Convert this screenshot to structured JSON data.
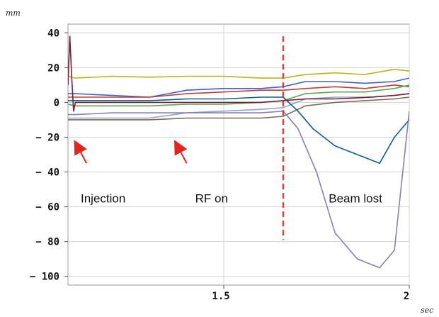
{
  "chart_data": {
    "type": "line",
    "title": "",
    "x_unit_label": "sec",
    "y_unit_label": "mm",
    "xlim": [
      1.08,
      2.0
    ],
    "ylim": [
      -105,
      45
    ],
    "x_ticks": [
      1.5,
      2
    ],
    "x_tick_labels": [
      "1.5",
      "2"
    ],
    "y_ticks": [
      40,
      20,
      0,
      -20,
      -40,
      -60,
      -80,
      -100
    ],
    "y_tick_labels": [
      "40",
      "20",
      "0",
      "-20",
      "-40",
      "-60",
      "-80",
      "-100"
    ],
    "grid": true,
    "legend": "none",
    "event_line": {
      "x": 1.66,
      "y_range": [
        -79,
        38
      ],
      "color": "#e8231d",
      "style": "dashed"
    },
    "annotations": [
      {
        "text": "Injection",
        "x": 1.08,
        "y": -55,
        "arrow_from": [
          1.13,
          -35
        ],
        "arrow_to": [
          1.1,
          -23
        ]
      },
      {
        "text": "RF on",
        "x": 1.4,
        "y": -55,
        "arrow_from": [
          1.4,
          -35
        ],
        "arrow_to": [
          1.37,
          -23
        ]
      },
      {
        "text": "Beam lost",
        "x": 1.76,
        "y": -55
      }
    ],
    "series": [
      {
        "color": "#b7b61a",
        "x": [
          1.08,
          1.1,
          1.2,
          1.3,
          1.4,
          1.5,
          1.6,
          1.66,
          1.72,
          1.8,
          1.88,
          1.96,
          2.0
        ],
        "values": [
          15,
          14,
          15,
          14.5,
          15,
          15,
          14,
          14,
          16,
          17,
          16,
          19,
          18
        ]
      },
      {
        "color": "#3f5fc6",
        "x": [
          1.08,
          1.1,
          1.2,
          1.3,
          1.4,
          1.5,
          1.6,
          1.66,
          1.72,
          1.8,
          1.88,
          1.96,
          2.0
        ],
        "values": [
          5,
          5,
          4,
          3,
          7,
          8,
          8,
          9,
          12,
          12,
          11,
          12,
          14
        ]
      },
      {
        "color": "#c23a3a",
        "x": [
          1.08,
          1.1,
          1.2,
          1.3,
          1.4,
          1.5,
          1.6,
          1.66,
          1.72,
          1.8,
          1.88,
          1.96,
          2.0
        ],
        "values": [
          3,
          3,
          3,
          3,
          5,
          6,
          7,
          7,
          8,
          9,
          8,
          10,
          9
        ]
      },
      {
        "color": "#58a85a",
        "x": [
          1.08,
          1.1,
          1.2,
          1.3,
          1.4,
          1.5,
          1.6,
          1.66,
          1.72,
          1.8,
          1.88,
          1.96,
          2.0
        ],
        "values": [
          -1,
          -2,
          -2,
          -2,
          -1,
          -1,
          0,
          1,
          5,
          6,
          6,
          8,
          10
        ]
      },
      {
        "color": "#8fa5c7",
        "x": [
          1.08,
          1.1,
          1.2,
          1.3,
          1.4,
          1.5,
          1.6,
          1.66,
          1.72,
          1.8,
          1.88,
          1.96,
          2.0
        ],
        "values": [
          -9,
          -9,
          -9,
          -9,
          -6,
          -5,
          -4,
          -3,
          2,
          3,
          3,
          4,
          5
        ]
      },
      {
        "color": "#7c6a55",
        "x": [
          1.08,
          1.1,
          1.2,
          1.3,
          1.4,
          1.5,
          1.6,
          1.66,
          1.72,
          1.8,
          1.88,
          1.96,
          2.0
        ],
        "values": [
          -10,
          -10,
          -10,
          -10,
          -9,
          -9,
          -9,
          -8,
          -2,
          0,
          1,
          2,
          3
        ]
      },
      {
        "color": "#0f5f8a",
        "x": [
          1.08,
          1.1,
          1.2,
          1.3,
          1.4,
          1.5,
          1.6,
          1.66,
          1.7,
          1.74,
          1.8,
          1.86,
          1.92,
          1.96,
          2.0
        ],
        "values": [
          1,
          1,
          1,
          1,
          2,
          2,
          3,
          3,
          -5,
          -15,
          -25,
          -30,
          -35,
          -20,
          -10
        ]
      },
      {
        "color": "#8a7fb8",
        "x": [
          1.08,
          1.1,
          1.2,
          1.3,
          1.4,
          1.5,
          1.6,
          1.66,
          1.7,
          1.75,
          1.8,
          1.86,
          1.92,
          1.96,
          2.0
        ],
        "values": [
          -7,
          -7,
          -6,
          -6,
          -6,
          -6,
          -6,
          -5,
          -15,
          -40,
          -75,
          -90,
          -95,
          -85,
          -5
        ]
      },
      {
        "color": "#7a1f3a",
        "x": [
          1.08,
          1.085,
          1.09,
          1.095,
          1.1,
          1.2,
          1.3,
          1.4,
          1.5,
          1.6,
          1.66,
          1.72,
          1.8,
          1.9,
          1.96,
          2.0
        ],
        "values": [
          10,
          38,
          15,
          -5,
          0,
          0,
          0,
          0,
          0,
          0,
          1,
          2,
          2,
          3,
          4,
          5
        ]
      }
    ]
  }
}
